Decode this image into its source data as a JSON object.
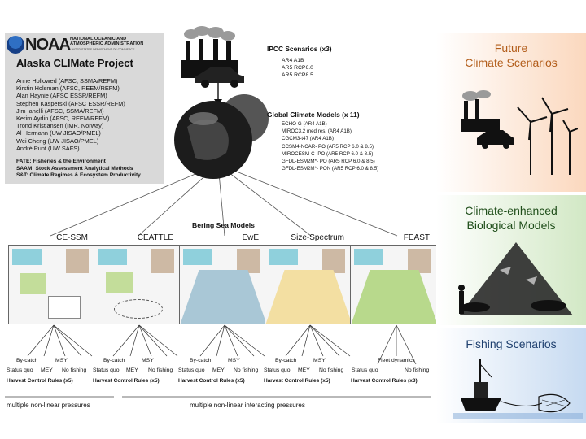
{
  "noaa": {
    "wordmark": "NOAA",
    "full_name": "NATIONAL OCEANIC AND ATMOSPHERIC ADMINISTRATION",
    "department": "UNITED STATES DEPARTMENT OF COMMERCE"
  },
  "project": {
    "title": "Alaska CLIMate Project",
    "members": [
      "Anne Hollowed (AFSC, SSMA/REFM)",
      "Kirstin Holsman (AFSC, REEM/REFM)",
      "Alan Haynie (AFSC ESSR/REFM)",
      "Stephen Kasperski (AFSC ESSR/REFM)",
      "Jim Ianelli (AFSC, SSMA/REFM)",
      "Kerim Aydin (AFSC, REEM/REFM)",
      "Trond Kristiansen (IMR, Norway)",
      "Al Hermann (UW JISAO/PMEL)",
      "Wei Cheng (UW JISAO/PMEL)",
      "André Punt (UW SAFS)"
    ],
    "abbreviations": [
      "FATE: Fisheries & the Environment",
      "SAAM: Stock Assessment Analytical Methods",
      "S&T: Climate Regimes & Ecosystem Productivity"
    ]
  },
  "ipcc": {
    "title": "IPCC Scenarios (x3)",
    "items": [
      "AR4 A1B",
      "AR5 RCP6.0",
      "AR5 RCP8.5"
    ]
  },
  "gcm": {
    "title": "Global Climate Models (x 11)",
    "items": [
      "ECHO-G (AR4 A1B)",
      "MIROC3.2 med res. (AR4 A1B)",
      "CGCM3-t47 (AR4 A1B)",
      "CCSM4-NCAR- PO (AR5 RCP 6.0 & 8.5)",
      "MIROCESM-C- PO (AR5 RCP 6.0 & 8.5)",
      "GFDL-ESM2M*- PO (AR5 RCP 6.0 & 8.5)",
      "GFDL-ESM2M*- PON (AR5 RCP 6.0 & 8.5)"
    ]
  },
  "bering": {
    "title": "Bering Sea Models",
    "models": [
      "CE-SSM",
      "CEATTLE",
      "EwE",
      "Size-Spectrum",
      "FEAST"
    ]
  },
  "colors": {
    "ewe_panel": "#a9c7d6",
    "size_panel": "#f3dfa2",
    "feast_panel": "#b8d98c",
    "bio_green": "#c3dd9a",
    "cyan_box": "#8fd0dc",
    "tan_box": "#cdb9a4"
  },
  "harvest": {
    "rule5": "Harvest Control Rules (x5)",
    "rule3": "Harvest Control Rules (x3)",
    "bycatch": "By-catch",
    "msy": "MSY",
    "status_quo": "Status quo",
    "mey": "MEY",
    "no_fishing": "No fishing",
    "fleet": "Fleet dynamics"
  },
  "pressures": {
    "left": "multiple non-linear pressures",
    "right": "multiple non-linear interacting pressures"
  },
  "sections": {
    "future_line1": "Future",
    "future_line2": "Climate Scenarios",
    "bio_line1": "Climate-enhanced",
    "bio_line2": "Biological Models",
    "fishing": "Fishing Scenarios"
  }
}
